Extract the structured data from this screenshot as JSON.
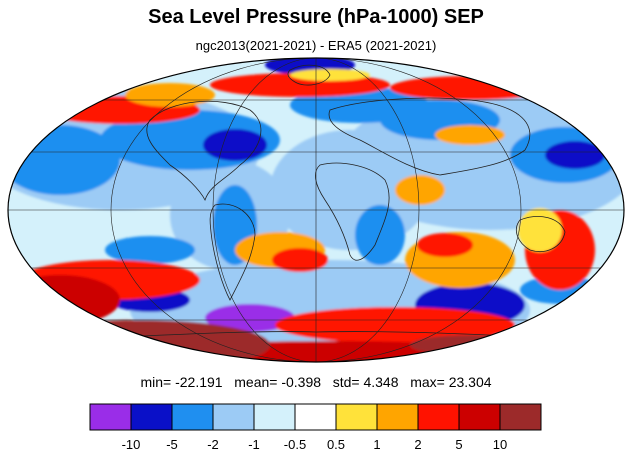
{
  "title": "Sea Level Pressure (hPa-1000) SEP",
  "subtitle": "ngc2013(2021-2021) - ERA5 (2021-2021)",
  "stats": {
    "min_label": "min=",
    "min": "-22.191",
    "mean_label": "mean=",
    "mean": "-0.398",
    "std_label": "std=",
    "std": "4.348",
    "max_label": "max=",
    "max": "23.304"
  },
  "colorbar": {
    "colors": [
      "#9a2de8",
      "#0a10c8",
      "#1f8ff0",
      "#9ccbf5",
      "#d4f1fb",
      "#ffffff",
      "#ffe23a",
      "#ffa500",
      "#ff1200",
      "#cc0000",
      "#9c2a2a"
    ],
    "labels": [
      "-10",
      "-5",
      "-2",
      "-1",
      "-0.5",
      "0.5",
      "1",
      "2",
      "5",
      "10"
    ]
  },
  "map": {
    "projection": "mollweide",
    "ocean_base_color": "#d4f1fb",
    "graticule": true,
    "continent_outlines": true
  }
}
